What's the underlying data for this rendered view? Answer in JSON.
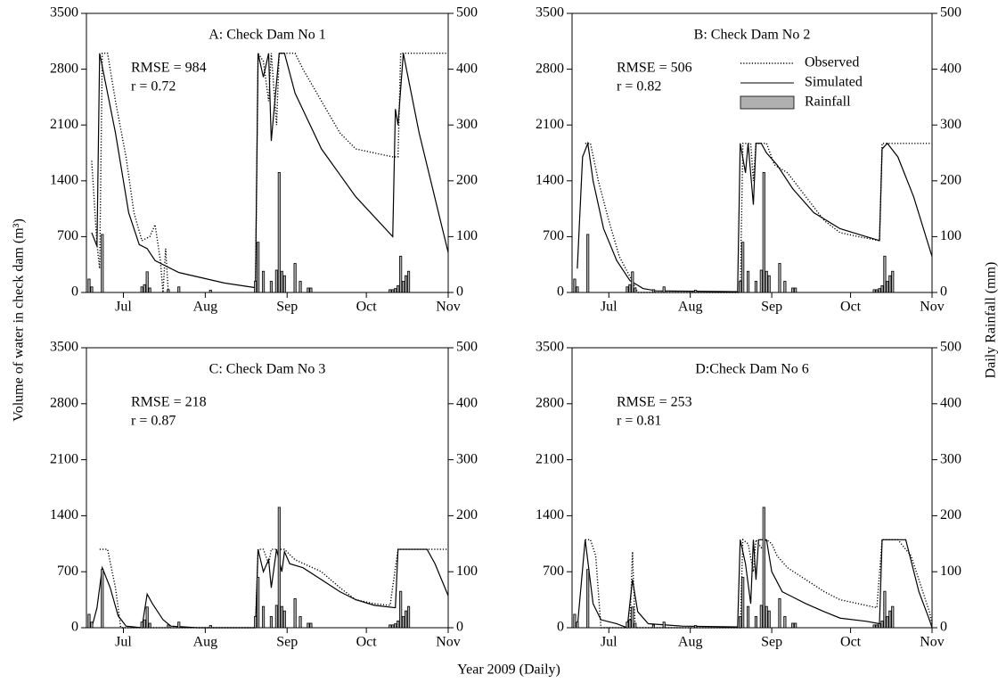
{
  "chart_data": [
    {
      "type": "line",
      "title": "A: Check Dam No 1",
      "annotations": [
        "RMSE = 984",
        "r = 0.72"
      ],
      "xlabel": "Year 2009 (Daily)",
      "ylabel": "Volume of water in check dam (m³)",
      "y2label": "Daily Rainfall (mm)",
      "xlim": [
        168,
        305
      ],
      "xticks": [
        {
          "value": 182,
          "label": "Jul"
        },
        {
          "value": 213,
          "label": "Aug"
        },
        {
          "value": 244,
          "label": "Sep"
        },
        {
          "value": 274,
          "label": "Oct"
        },
        {
          "value": 305,
          "label": "Nov"
        }
      ],
      "ylim": [
        0,
        3500
      ],
      "yticks": [
        0,
        700,
        1400,
        2100,
        2800,
        3500
      ],
      "y2lim": [
        0,
        500
      ],
      "y2ticks": [
        0,
        100,
        200,
        300,
        400,
        500
      ],
      "legend": false,
      "series": [
        {
          "name": "Observed",
          "type": "line",
          "color": "#000000",
          "x": [
            170,
            172,
            173,
            174,
            176,
            179,
            183,
            186,
            189,
            192,
            194,
            196,
            197,
            198,
            199,
            null,
            232,
            233,
            235,
            237,
            238,
            240,
            241,
            247,
            250,
            257,
            264,
            270,
            277,
            284,
            286,
            287,
            305
          ],
          "values": [
            1650,
            600,
            300,
            3000,
            3000,
            2400,
            1700,
            1000,
            650,
            700,
            850,
            400,
            0,
            550,
            0,
            null,
            0,
            3000,
            2900,
            2400,
            3000,
            2100,
            3000,
            3000,
            2800,
            2400,
            2000,
            1800,
            1750,
            1700,
            1700,
            3000,
            3000
          ]
        },
        {
          "name": "Simulated",
          "type": "line",
          "color": "#000000",
          "x": [
            170,
            172,
            173,
            179,
            184,
            188,
            191,
            194,
            203,
            220,
            232,
            233,
            235,
            237,
            238,
            241,
            243,
            247,
            257,
            270,
            284,
            285,
            286,
            288,
            294,
            305
          ],
          "values": [
            750,
            580,
            3000,
            2000,
            1000,
            600,
            550,
            400,
            250,
            120,
            60,
            3000,
            2700,
            3000,
            1900,
            3000,
            3000,
            2500,
            1800,
            1200,
            700,
            2300,
            2100,
            3000,
            2000,
            500
          ]
        },
        {
          "name": "Rainfall",
          "type": "bar",
          "axis": "y2",
          "color": "#b0b0b0",
          "x": [
            169,
            170,
            174,
            189,
            190,
            191,
            192,
            199,
            203,
            215,
            232,
            233,
            235,
            238,
            240,
            241,
            242,
            243,
            247,
            249,
            252,
            253,
            283,
            284,
            285,
            286,
            287,
            288,
            289,
            290
          ],
          "values": [
            24,
            10,
            104,
            10,
            14,
            37,
            8,
            5,
            10,
            4,
            20,
            90,
            38,
            20,
            40,
            215,
            38,
            30,
            52,
            20,
            8,
            8,
            5,
            5,
            7,
            12,
            65,
            20,
            30,
            38
          ]
        }
      ]
    },
    {
      "type": "line",
      "title": "B: Check Dam No 2",
      "annotations": [
        "RMSE = 506",
        "r = 0.82"
      ],
      "xlim": [
        168,
        305
      ],
      "xticks": [
        {
          "value": 182,
          "label": "Jul"
        },
        {
          "value": 213,
          "label": "Aug"
        },
        {
          "value": 244,
          "label": "Sep"
        },
        {
          "value": 274,
          "label": "Oct"
        },
        {
          "value": 305,
          "label": "Nov"
        }
      ],
      "ylim": [
        0,
        3500
      ],
      "yticks": [
        0,
        700,
        1400,
        2100,
        2800,
        3500
      ],
      "y2lim": [
        0,
        500
      ],
      "y2ticks": [
        0,
        100,
        200,
        300,
        400,
        500
      ],
      "legend": "upper right",
      "series": [
        {
          "name": "Observed",
          "type": "line",
          "color": "#000000",
          "x": [
            173,
            175,
            178,
            182,
            186,
            190,
            193,
            232,
            233,
            236,
            237,
            238,
            240,
            242,
            245,
            250,
            257,
            264,
            270,
            277,
            285,
            286,
            305
          ],
          "values": [
            1870,
            1870,
            1400,
            900,
            450,
            200,
            0,
            0,
            1870,
            1870,
            1400,
            1870,
            1870,
            1870,
            1600,
            1500,
            1200,
            900,
            750,
            700,
            650,
            1870,
            1870
          ]
        },
        {
          "name": "Simulated",
          "type": "line",
          "color": "#000000",
          "x": [
            170,
            172,
            174,
            176,
            180,
            185,
            190,
            195,
            200,
            231,
            232,
            234,
            235,
            237,
            238,
            240,
            242,
            246,
            252,
            260,
            270,
            280,
            285,
            286,
            288,
            292,
            298,
            305
          ],
          "values": [
            300,
            1700,
            1870,
            1400,
            800,
            400,
            150,
            50,
            20,
            10,
            1870,
            1500,
            1870,
            1100,
            1870,
            1870,
            1750,
            1600,
            1300,
            1000,
            800,
            700,
            650,
            1800,
            1870,
            1700,
            1200,
            450
          ]
        },
        {
          "name": "Rainfall",
          "type": "bar",
          "axis": "y2",
          "color": "#b0b0b0",
          "x": [
            169,
            170,
            174,
            189,
            190,
            191,
            192,
            199,
            203,
            215,
            232,
            233,
            235,
            238,
            240,
            241,
            242,
            243,
            247,
            249,
            252,
            253,
            283,
            284,
            285,
            286,
            287,
            288,
            289,
            290
          ],
          "values": [
            24,
            10,
            104,
            10,
            14,
            37,
            8,
            5,
            10,
            4,
            20,
            90,
            38,
            20,
            40,
            215,
            38,
            30,
            52,
            20,
            8,
            8,
            5,
            5,
            7,
            12,
            65,
            20,
            30,
            38
          ]
        }
      ]
    },
    {
      "type": "line",
      "title": "C: Check Dam No 3",
      "annotations": [
        "RMSE = 218",
        "r = 0.87"
      ],
      "xlim": [
        168,
        305
      ],
      "xticks": [
        {
          "value": 182,
          "label": "Jul"
        },
        {
          "value": 213,
          "label": "Aug"
        },
        {
          "value": 244,
          "label": "Sep"
        },
        {
          "value": 274,
          "label": "Oct"
        },
        {
          "value": 305,
          "label": "Nov"
        }
      ],
      "ylim": [
        0,
        3500
      ],
      "yticks": [
        0,
        700,
        1400,
        2100,
        2800,
        3500
      ],
      "y2lim": [
        0,
        500
      ],
      "y2ticks": [
        0,
        100,
        200,
        300,
        400,
        500
      ],
      "legend": false,
      "series": [
        {
          "name": "Observed",
          "type": "line",
          "color": "#000000",
          "x": [
            173,
            176,
            179,
            181,
            232,
            233,
            235,
            237,
            238,
            241,
            243,
            247,
            257,
            264,
            270,
            277,
            283,
            286,
            300,
            305
          ],
          "values": [
            980,
            980,
            500,
            0,
            0,
            980,
            980,
            800,
            980,
            980,
            980,
            850,
            700,
            500,
            350,
            300,
            280,
            980,
            980,
            980
          ]
        },
        {
          "name": "Simulated",
          "type": "line",
          "color": "#000000",
          "x": [
            170,
            172,
            174,
            177,
            180,
            183,
            189,
            191,
            193,
            197,
            200,
            210,
            232,
            233,
            235,
            237,
            238,
            240,
            242,
            243,
            245,
            250,
            257,
            264,
            270,
            277,
            285,
            286,
            297,
            300,
            305
          ],
          "values": [
            0,
            250,
            750,
            500,
            150,
            20,
            0,
            420,
            300,
            100,
            20,
            0,
            0,
            980,
            700,
            850,
            500,
            980,
            700,
            950,
            800,
            750,
            600,
            450,
            350,
            280,
            250,
            980,
            980,
            800,
            400
          ]
        },
        {
          "name": "Rainfall",
          "type": "bar",
          "axis": "y2",
          "color": "#b0b0b0",
          "x": [
            169,
            170,
            174,
            189,
            190,
            191,
            192,
            199,
            203,
            215,
            232,
            233,
            235,
            238,
            240,
            241,
            242,
            243,
            247,
            249,
            252,
            253,
            283,
            284,
            285,
            286,
            287,
            288,
            289,
            290
          ],
          "values": [
            24,
            10,
            104,
            10,
            14,
            37,
            8,
            5,
            10,
            4,
            20,
            90,
            38,
            20,
            40,
            215,
            38,
            30,
            52,
            20,
            8,
            8,
            5,
            5,
            7,
            12,
            65,
            20,
            30,
            38
          ]
        }
      ]
    },
    {
      "type": "line",
      "title": "D:Check Dam No 6",
      "annotations": [
        "RMSE = 253",
        "r = 0.81"
      ],
      "xlim": [
        168,
        305
      ],
      "xticks": [
        {
          "value": 182,
          "label": "Jul"
        },
        {
          "value": 213,
          "label": "Aug"
        },
        {
          "value": 244,
          "label": "Sep"
        },
        {
          "value": 274,
          "label": "Oct"
        },
        {
          "value": 305,
          "label": "Nov"
        }
      ],
      "ylim": [
        0,
        3500
      ],
      "yticks": [
        0,
        700,
        1400,
        2100,
        2800,
        3500
      ],
      "y2lim": [
        0,
        500
      ],
      "y2ticks": [
        0,
        100,
        200,
        300,
        400,
        500
      ],
      "legend": false,
      "series": [
        {
          "name": "Observed",
          "type": "line",
          "color": "#000000",
          "x": [
            173,
            175,
            177,
            179,
            190,
            191,
            192,
            232,
            233,
            235,
            237,
            238,
            240,
            242,
            244,
            246,
            250,
            257,
            264,
            270,
            277,
            284,
            286,
            292,
            297,
            300,
            304,
            305
          ],
          "values": [
            1100,
            1100,
            900,
            0,
            0,
            950,
            0,
            0,
            1100,
            1050,
            700,
            1100,
            1000,
            1100,
            1050,
            900,
            750,
            600,
            450,
            350,
            300,
            250,
            1100,
            1100,
            900,
            600,
            200,
            50
          ]
        },
        {
          "name": "Simulated",
          "type": "line",
          "color": "#000000",
          "x": [
            170,
            173,
            176,
            179,
            185,
            189,
            191,
            193,
            197,
            210,
            231,
            232,
            234,
            236,
            237,
            238,
            239,
            242,
            244,
            248,
            257,
            264,
            270,
            280,
            285,
            286,
            295,
            300,
            304,
            305
          ],
          "values": [
            0,
            1100,
            300,
            100,
            50,
            0,
            600,
            200,
            50,
            20,
            10,
            1100,
            800,
            300,
            1100,
            600,
            1100,
            1100,
            700,
            450,
            300,
            200,
            120,
            80,
            50,
            1100,
            1100,
            450,
            100,
            0
          ]
        },
        {
          "name": "Rainfall",
          "type": "bar",
          "axis": "y2",
          "color": "#b0b0b0",
          "x": [
            169,
            170,
            174,
            189,
            190,
            191,
            192,
            199,
            203,
            215,
            232,
            233,
            235,
            238,
            240,
            241,
            242,
            243,
            247,
            249,
            252,
            253,
            283,
            284,
            285,
            286,
            287,
            288,
            289,
            290
          ],
          "values": [
            24,
            10,
            104,
            10,
            14,
            37,
            8,
            5,
            10,
            4,
            20,
            90,
            38,
            20,
            40,
            215,
            38,
            30,
            52,
            20,
            8,
            8,
            5,
            5,
            7,
            12,
            65,
            20,
            30,
            38
          ]
        }
      ]
    }
  ]
}
